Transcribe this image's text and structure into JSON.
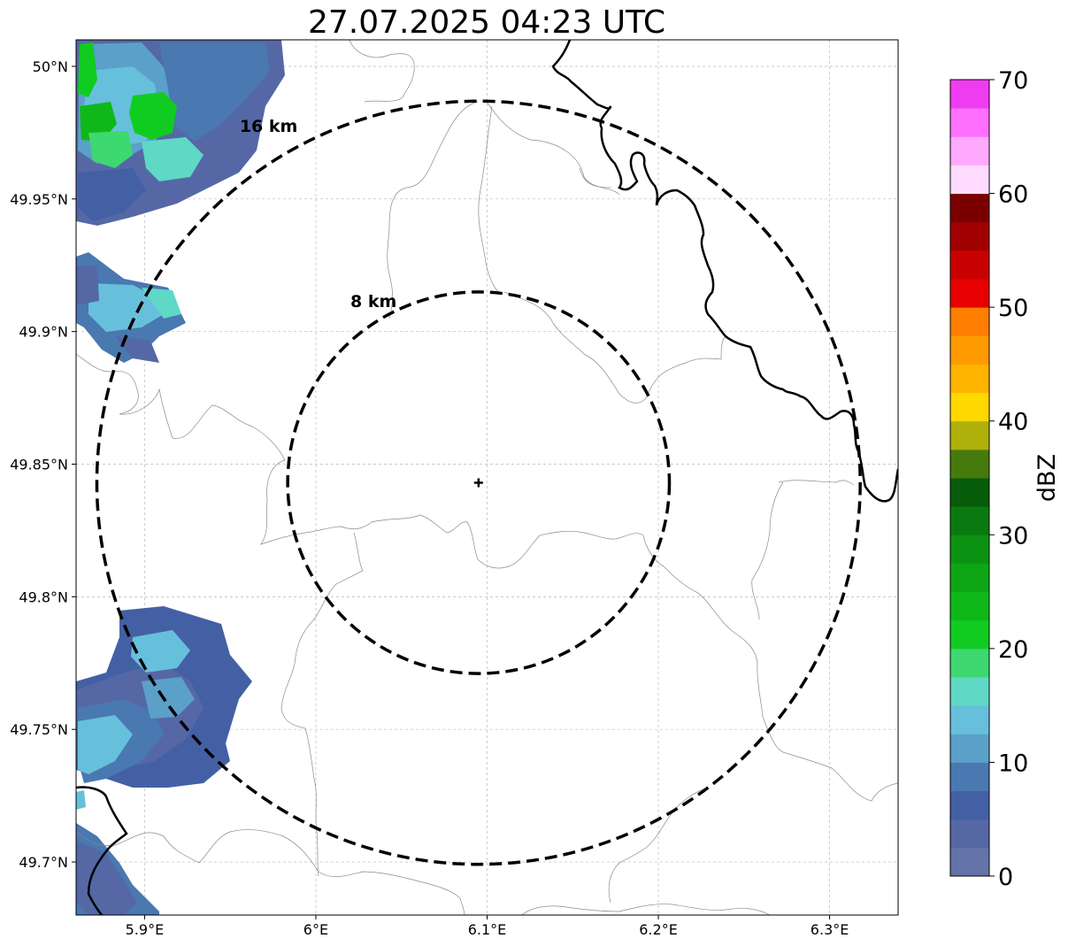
{
  "title": "27.07.2025 04:23 UTC",
  "map": {
    "lon_range": [
      5.86,
      6.34
    ],
    "lat_range": [
      49.68,
      50.01
    ],
    "radar_site": {
      "lon": 6.095,
      "lat": 49.843,
      "marker": "plus"
    },
    "rings": [
      {
        "label": "8 km",
        "radius_km": 8
      },
      {
        "label": "16 km",
        "radius_km": 16
      }
    ],
    "gridlines": true,
    "x_ticks": [
      {
        "value": 5.9,
        "label": "5.9°E"
      },
      {
        "value": 6.0,
        "label": "6°E"
      },
      {
        "value": 6.1,
        "label": "6.1°E"
      },
      {
        "value": 6.2,
        "label": "6.2°E"
      },
      {
        "value": 6.3,
        "label": "6.3°E"
      }
    ],
    "y_ticks": [
      {
        "value": 50.0,
        "label": "50°N"
      },
      {
        "value": 49.95,
        "label": "49.95°N"
      },
      {
        "value": 49.9,
        "label": "49.9°N"
      },
      {
        "value": 49.85,
        "label": "49.85°N"
      },
      {
        "value": 49.8,
        "label": "49.8°N"
      },
      {
        "value": 49.75,
        "label": "49.75°N"
      },
      {
        "value": 49.7,
        "label": "49.7°N"
      }
    ]
  },
  "colorbar": {
    "label": "dBZ",
    "min": 0,
    "max": 70,
    "step": 2.5,
    "ticks": [
      "0",
      "10",
      "20",
      "30",
      "40",
      "50",
      "60",
      "70"
    ],
    "colors": [
      "#6473a8",
      "#5568a5",
      "#4460a4",
      "#4a78b0",
      "#5ba0c8",
      "#66c0dc",
      "#5fd8c5",
      "#3dd870",
      "#10cc20",
      "#0fb818",
      "#0ea514",
      "#0c9212",
      "#0a7a10",
      "#075c09",
      "#477a0c",
      "#afb00a",
      "#ffd800",
      "#ffb400",
      "#ff9a00",
      "#ff7d00",
      "#e60000",
      "#c80000",
      "#a00000",
      "#7a0000",
      "#ffdcff",
      "#ffaaff",
      "#ff70ff",
      "#f03cf0"
    ]
  }
}
